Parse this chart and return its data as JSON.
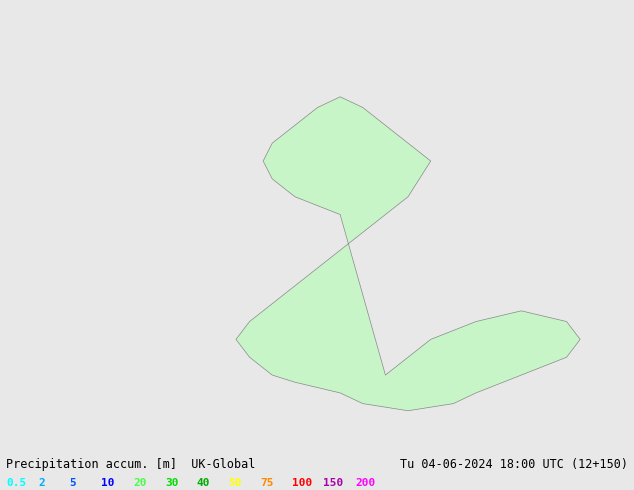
{
  "title_left": "Precipitation accum. [m]  UK-Global",
  "title_right": "Tu 04-06-2024 18:00 UTC (12+150)",
  "legend_values": [
    "0.5",
    "2",
    "5",
    "10",
    "20",
    "30",
    "40",
    "50",
    "75",
    "100",
    "150",
    "200"
  ],
  "legend_colors": [
    "#00ffff",
    "#00bfff",
    "#0080ff",
    "#0000ff",
    "#00ff00",
    "#00cc00",
    "#009900",
    "#ffff00",
    "#ff8800",
    "#ff0000",
    "#cc00cc",
    "#ff00ff"
  ],
  "bg_color": "#e8e8e8",
  "land_fill": "#c8f5c8",
  "land_edge": "#888888",
  "fig_width": 6.34,
  "fig_height": 4.9,
  "dpi": 100
}
